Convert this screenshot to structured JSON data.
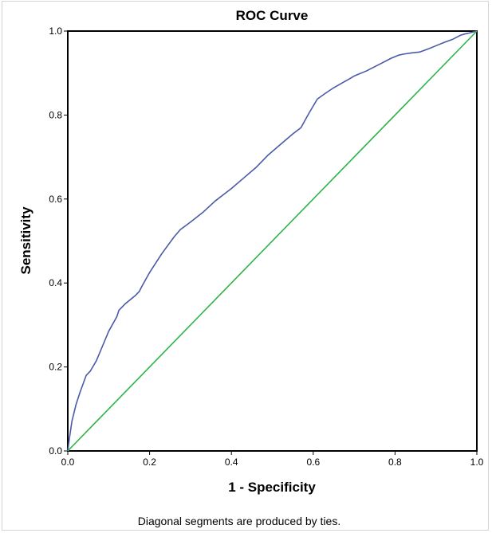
{
  "chart_data": {
    "type": "line",
    "title": "ROC Curve",
    "xlabel": "1 - Specificity",
    "ylabel": "Sensitivity",
    "xlim": [
      0.0,
      1.0
    ],
    "ylim": [
      0.0,
      1.0
    ],
    "x_ticks": [
      "0.0",
      "0.2",
      "0.4",
      "0.6",
      "0.8",
      "1.0"
    ],
    "y_ticks": [
      "0.0",
      "0.2",
      "0.4",
      "0.6",
      "0.8",
      "1.0"
    ],
    "grid": false,
    "note": "Diagonal segments are produced by ties.",
    "series": [
      {
        "color": "#4a5aa8",
        "x": [
          0.0,
          0.004,
          0.01,
          0.02,
          0.03,
          0.045,
          0.055,
          0.07,
          0.085,
          0.1,
          0.12,
          0.125,
          0.14,
          0.165,
          0.175,
          0.18,
          0.2,
          0.23,
          0.26,
          0.275,
          0.3,
          0.33,
          0.36,
          0.38,
          0.4,
          0.43,
          0.46,
          0.49,
          0.52,
          0.55,
          0.57,
          0.59,
          0.61,
          0.63,
          0.65,
          0.67,
          0.69,
          0.7,
          0.73,
          0.76,
          0.79,
          0.81,
          0.82,
          0.84,
          0.86,
          0.88,
          0.9,
          0.92,
          0.94,
          0.95,
          0.96,
          0.97,
          0.98,
          1.0
        ],
        "y": [
          0.0,
          0.03,
          0.07,
          0.11,
          0.14,
          0.18,
          0.19,
          0.215,
          0.25,
          0.285,
          0.32,
          0.335,
          0.35,
          0.37,
          0.38,
          0.39,
          0.425,
          0.47,
          0.51,
          0.527,
          0.545,
          0.568,
          0.595,
          0.61,
          0.625,
          0.65,
          0.675,
          0.705,
          0.73,
          0.755,
          0.77,
          0.805,
          0.838,
          0.852,
          0.865,
          0.876,
          0.887,
          0.893,
          0.905,
          0.92,
          0.935,
          0.943,
          0.945,
          0.948,
          0.95,
          0.957,
          0.965,
          0.973,
          0.98,
          0.985,
          0.99,
          0.993,
          0.995,
          1.0
        ]
      },
      {
        "color": "#2cb34a",
        "x": [
          0.0,
          1.0
        ],
        "y": [
          0.0,
          1.0
        ]
      }
    ]
  }
}
